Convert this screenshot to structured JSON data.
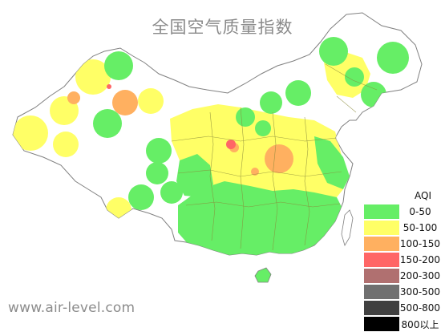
{
  "title": "全国空气质量指数",
  "watermark": "www.air-level.com",
  "legend": {
    "title": "AQI",
    "items": [
      {
        "label": "0-50",
        "color": "#66ee66"
      },
      {
        "label": "50-100",
        "color": "#ffff66"
      },
      {
        "label": "100-150",
        "color": "#ffb060"
      },
      {
        "label": "150-200",
        "color": "#ff6666"
      },
      {
        "label": "200-300",
        "color": "#b07070"
      },
      {
        "label": "300-500",
        "color": "#707070"
      },
      {
        "label": "500-800",
        "color": "#404040"
      },
      {
        "label": "800以上",
        "color": "#000000"
      }
    ]
  },
  "colors": {
    "border": "#808080",
    "province_border": "#8a8a3a",
    "good": "#66ee66",
    "moderate": "#ffff66",
    "unhealthy_sensitive": "#ffb060",
    "unhealthy": "#ff6666"
  }
}
